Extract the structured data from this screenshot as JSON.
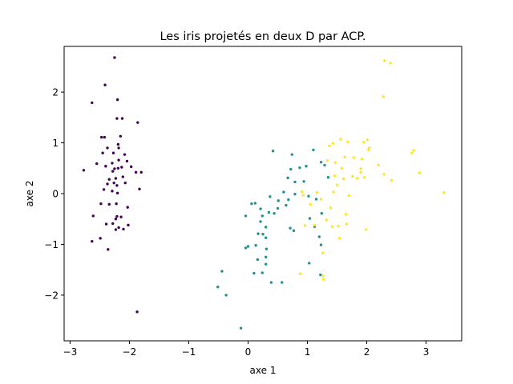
{
  "chart_data": {
    "type": "scatter",
    "title": "Les iris projetés en deux D par ACP.",
    "xlabel": "axe 1",
    "ylabel": "axe 2",
    "xlim": [
      -3.1,
      3.6
    ],
    "ylim": [
      -2.9,
      2.9
    ],
    "xticks": [
      -3,
      -2,
      -1,
      0,
      1,
      2,
      3
    ],
    "yticks": [
      -2,
      -1,
      0,
      1,
      2
    ],
    "xtick_labels": [
      "−3",
      "−2",
      "−1",
      "0",
      "1",
      "2",
      "3"
    ],
    "ytick_labels": [
      "−2",
      "−1",
      "0",
      "1",
      "2"
    ],
    "grid": false,
    "colors": {
      "class0": "#440154",
      "class1": "#21918c",
      "class2": "#fde725"
    },
    "series": [
      {
        "color": "#440154",
        "points": [
          [
            -2.25,
            2.68
          ],
          [
            -2.41,
            2.14
          ],
          [
            -2.63,
            1.79
          ],
          [
            -2.2,
            1.85
          ],
          [
            -2.47,
            1.11
          ],
          [
            -2.42,
            1.11
          ],
          [
            -2.21,
            1.48
          ],
          [
            -2.12,
            1.48
          ],
          [
            -1.86,
            1.4
          ],
          [
            -2.15,
            1.13
          ],
          [
            -2.19,
            0.97
          ],
          [
            -2.37,
            0.9
          ],
          [
            -2.27,
            0.8
          ],
          [
            -2.18,
            0.9
          ],
          [
            -2.45,
            0.8
          ],
          [
            -2.08,
            0.77
          ],
          [
            -2.18,
            0.66
          ],
          [
            -2.29,
            0.6
          ],
          [
            -2.04,
            0.64
          ],
          [
            -2.55,
            0.59
          ],
          [
            -2.4,
            0.54
          ],
          [
            -1.97,
            0.53
          ],
          [
            -1.8,
            0.42
          ],
          [
            -2.13,
            0.52
          ],
          [
            -2.19,
            0.5
          ],
          [
            -2.25,
            0.49
          ],
          [
            -2.28,
            0.44
          ],
          [
            -2.11,
            0.33
          ],
          [
            -2.23,
            0.3
          ],
          [
            -2.77,
            0.46
          ],
          [
            -1.89,
            0.42
          ],
          [
            -2.34,
            0.28
          ],
          [
            -2.26,
            0.21
          ],
          [
            -2.37,
            0.19
          ],
          [
            -2.07,
            0.21
          ],
          [
            -2.21,
            0.16
          ],
          [
            -2.29,
            0.05
          ],
          [
            -1.83,
            0.09
          ],
          [
            -2.43,
            0.08
          ],
          [
            -2.2,
            0.01
          ],
          [
            -2.34,
            -0.21
          ],
          [
            -2.48,
            -0.2
          ],
          [
            -2.22,
            -0.2
          ],
          [
            -2.03,
            -0.27
          ],
          [
            -2.61,
            -0.44
          ],
          [
            -2.21,
            -0.45
          ],
          [
            -2.14,
            -0.46
          ],
          [
            -2.23,
            -0.5
          ],
          [
            -2.28,
            -0.59
          ],
          [
            -2.39,
            -0.6
          ],
          [
            -2.02,
            -0.62
          ],
          [
            -2.18,
            -0.67
          ],
          [
            -2.1,
            -0.7
          ],
          [
            -2.23,
            -0.71
          ],
          [
            -2.63,
            -0.94
          ],
          [
            -2.49,
            -0.88
          ],
          [
            -2.36,
            -1.1
          ],
          [
            -1.87,
            -2.33
          ]
        ]
      },
      {
        "color": "#21918c",
        "points": [
          [
            0.42,
            0.84
          ],
          [
            0.74,
            0.77
          ],
          [
            1.1,
            0.86
          ],
          [
            1.23,
            0.62
          ],
          [
            0.98,
            0.54
          ],
          [
            0.87,
            0.51
          ],
          [
            0.72,
            0.48
          ],
          [
            1.29,
            0.56
          ],
          [
            1.35,
            0.32
          ],
          [
            0.67,
            0.31
          ],
          [
            0.79,
            0.23
          ],
          [
            0.94,
            0.24
          ],
          [
            0.6,
            0.03
          ],
          [
            0.79,
            -0.01
          ],
          [
            1.02,
            -0.05
          ],
          [
            0.37,
            -0.06
          ],
          [
            1.15,
            -0.11
          ],
          [
            0.68,
            -0.12
          ],
          [
            0.51,
            -0.14
          ],
          [
            0.64,
            -0.23
          ],
          [
            0.12,
            -0.19
          ],
          [
            0.06,
            -0.2
          ],
          [
            0.5,
            -0.29
          ],
          [
            1.24,
            -0.39
          ],
          [
            0.21,
            -0.3
          ],
          [
            0.35,
            -0.37
          ],
          [
            0.24,
            -0.44
          ],
          [
            0.44,
            -0.39
          ],
          [
            -0.04,
            -0.44
          ],
          [
            1.04,
            -0.49
          ],
          [
            0.21,
            -0.55
          ],
          [
            1.12,
            -0.65
          ],
          [
            0.71,
            -0.68
          ],
          [
            0.3,
            -0.66
          ],
          [
            0.77,
            -0.73
          ],
          [
            1.2,
            -0.85
          ],
          [
            0.17,
            -0.79
          ],
          [
            0.25,
            -0.8
          ],
          [
            0.3,
            -0.87
          ],
          [
            0.13,
            -1.02
          ],
          [
            0.0,
            -1.04
          ],
          [
            -0.04,
            -1.07
          ],
          [
            0.31,
            -1.09
          ],
          [
            1.23,
            -1.01
          ],
          [
            0.16,
            -1.3
          ],
          [
            0.3,
            -1.25
          ],
          [
            1.03,
            -1.37
          ],
          [
            0.3,
            -1.39
          ],
          [
            0.24,
            -1.56
          ],
          [
            0.1,
            -1.57
          ],
          [
            0.39,
            -1.75
          ],
          [
            0.57,
            -1.75
          ],
          [
            1.22,
            -1.6
          ],
          [
            -0.51,
            -1.84
          ],
          [
            -0.44,
            -1.53
          ],
          [
            -0.37,
            -2.0
          ],
          [
            -0.12,
            -2.65
          ]
        ]
      },
      {
        "color": "#fde725",
        "points": [
          [
            2.3,
            2.62
          ],
          [
            2.4,
            2.57
          ],
          [
            2.28,
            1.91
          ],
          [
            1.56,
            1.07
          ],
          [
            1.68,
            1.02
          ],
          [
            1.95,
            1.01
          ],
          [
            2.01,
            1.06
          ],
          [
            1.43,
            0.99
          ],
          [
            1.37,
            0.94
          ],
          [
            2.04,
            0.9
          ],
          [
            2.03,
            0.86
          ],
          [
            1.92,
            0.68
          ],
          [
            2.79,
            0.85
          ],
          [
            2.76,
            0.8
          ],
          [
            1.63,
            0.72
          ],
          [
            1.78,
            0.71
          ],
          [
            2.2,
            0.56
          ],
          [
            1.47,
            0.61
          ],
          [
            1.34,
            0.65
          ],
          [
            1.58,
            0.5
          ],
          [
            1.9,
            0.49
          ],
          [
            2.89,
            0.41
          ],
          [
            1.9,
            0.42
          ],
          [
            2.29,
            0.38
          ],
          [
            1.46,
            0.35
          ],
          [
            1.76,
            0.34
          ],
          [
            1.61,
            0.29
          ],
          [
            1.84,
            0.3
          ],
          [
            1.96,
            0.32
          ],
          [
            2.42,
            0.26
          ],
          [
            1.5,
            0.17
          ],
          [
            3.3,
            0.02
          ],
          [
            0.91,
            0.04
          ],
          [
            0.93,
            -0.03
          ],
          [
            1.16,
            0.02
          ],
          [
            1.44,
            0.03
          ],
          [
            1.7,
            -0.04
          ],
          [
            1.23,
            -0.11
          ],
          [
            1.05,
            -0.21
          ],
          [
            1.39,
            -0.28
          ],
          [
            1.65,
            -0.41
          ],
          [
            1.32,
            -0.52
          ],
          [
            1.52,
            -0.64
          ],
          [
            0.96,
            -0.63
          ],
          [
            1.12,
            -0.62
          ],
          [
            1.42,
            -0.65
          ],
          [
            1.66,
            -0.6
          ],
          [
            1.99,
            -0.71
          ],
          [
            1.54,
            -0.88
          ],
          [
            1.26,
            -1.17
          ],
          [
            0.88,
            -1.58
          ],
          [
            1.26,
            -1.62
          ],
          [
            1.27,
            -1.69
          ]
        ]
      }
    ]
  }
}
